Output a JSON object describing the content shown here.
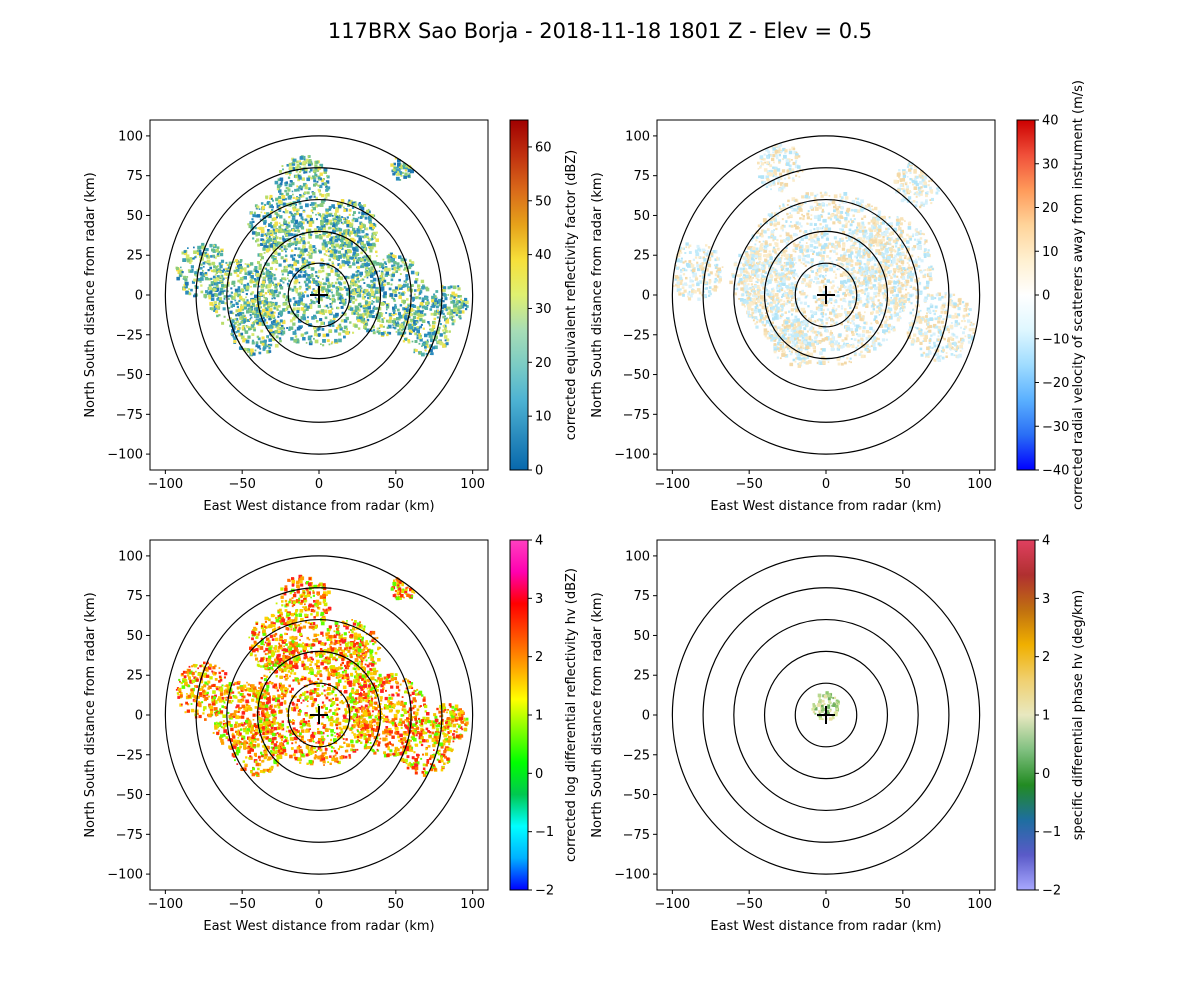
{
  "title": "117BRX Sao Borja - 2018-11-18 1801 Z -  Elev = 0.5",
  "chart_data": [
    {
      "type": "heatmap",
      "field": "reflectivity",
      "xlabel": "East West distance from radar (km)",
      "ylabel": "North South distance from radar (km)",
      "xlim": [
        -110,
        110
      ],
      "ylim": [
        -110,
        110
      ],
      "xticks": [
        -100,
        -50,
        0,
        50,
        100
      ],
      "yticks": [
        -100,
        -75,
        -50,
        -25,
        0,
        25,
        50,
        75,
        100
      ],
      "range_rings_km": [
        20,
        40,
        60,
        80,
        100
      ],
      "colorbar": {
        "label": "corrected equivalent reflectivity factor (dBZ)",
        "vmin": 0,
        "vmax": 65,
        "ticks": [
          0,
          10,
          20,
          30,
          40,
          50,
          60
        ],
        "colors": [
          "#0868ac",
          "#2b8cbe",
          "#4eb3d3",
          "#7bccc4",
          "#a8ddb5",
          "#dff071",
          "#f7e03a",
          "#e6a21a",
          "#d9691a",
          "#c0300f",
          "#a00000"
        ]
      },
      "echo_colors": [
        "#1f78b4",
        "#2b8cbe",
        "#3d9fb8",
        "#4fb0a8",
        "#66bb8d",
        "#8ccc7a",
        "#b8dd6a",
        "#d8e870",
        "#f2e04a"
      ],
      "echo_regions": [
        {
          "center": [
            0,
            10
          ],
          "radius": 42
        },
        {
          "center": [
            -10,
            70
          ],
          "radius": 18
        },
        {
          "center": [
            -28,
            45
          ],
          "radius": 18
        },
        {
          "center": [
            -75,
            15
          ],
          "radius": 18
        },
        {
          "center": [
            -50,
            0
          ],
          "radius": 22
        },
        {
          "center": [
            45,
            0
          ],
          "radius": 26
        },
        {
          "center": [
            70,
            -20
          ],
          "radius": 18
        },
        {
          "center": [
            85,
            -5
          ],
          "radius": 12
        },
        {
          "center": [
            -40,
            -20
          ],
          "radius": 18
        },
        {
          "center": [
            20,
            40
          ],
          "radius": 20
        },
        {
          "center": [
            55,
            80
          ],
          "radius": 8
        }
      ]
    },
    {
      "type": "heatmap",
      "field": "velocity",
      "xlabel": "East West distance from radar (km)",
      "ylabel": "North South distance from radar (km)",
      "xlim": [
        -110,
        110
      ],
      "ylim": [
        -110,
        110
      ],
      "xticks": [
        -100,
        -50,
        0,
        50,
        100
      ],
      "yticks": [
        -100,
        -75,
        -50,
        -25,
        0,
        25,
        50,
        75,
        100
      ],
      "range_rings_km": [
        20,
        40,
        60,
        80,
        100
      ],
      "colorbar": {
        "label": "corrected radial velocity of scatterers away from instrument (m/s)",
        "vmin": -40,
        "vmax": 40,
        "ticks": [
          -40,
          -30,
          -20,
          -10,
          0,
          10,
          20,
          30,
          40
        ],
        "colors": [
          "#0000ff",
          "#2a6ef5",
          "#5ab0ff",
          "#9fdcff",
          "#dff7ff",
          "#ffffff",
          "#fff0d0",
          "#ffd49a",
          "#ff9a5a",
          "#f0503a",
          "#cc0000"
        ]
      },
      "echo_colors": [
        "#fbeccb",
        "#f8e3b8",
        "#f3d9a8",
        "#d8f1fb",
        "#c2ebfa",
        "#b2e4f7"
      ],
      "echo_regions": [
        {
          "center": [
            0,
            10
          ],
          "radius": 55
        },
        {
          "center": [
            -85,
            15
          ],
          "radius": 18
        },
        {
          "center": [
            -40,
            10
          ],
          "radius": 22
        },
        {
          "center": [
            40,
            20
          ],
          "radius": 30
        },
        {
          "center": [
            75,
            -20
          ],
          "radius": 22
        },
        {
          "center": [
            -30,
            80
          ],
          "radius": 15
        },
        {
          "center": [
            -20,
            -30
          ],
          "radius": 15
        },
        {
          "center": [
            60,
            70
          ],
          "radius": 15
        }
      ]
    },
    {
      "type": "heatmap",
      "field": "differential_reflectivity",
      "xlabel": "East West distance from radar (km)",
      "ylabel": "North South distance from radar (km)",
      "xlim": [
        -110,
        110
      ],
      "ylim": [
        -110,
        110
      ],
      "xticks": [
        -100,
        -50,
        0,
        50,
        100
      ],
      "yticks": [
        -100,
        -75,
        -50,
        -25,
        0,
        25,
        50,
        75,
        100
      ],
      "range_rings_km": [
        20,
        40,
        60,
        80,
        100
      ],
      "colorbar": {
        "label": "corrected log differential reflectivity hv (dBZ)",
        "vmin": -2,
        "vmax": 4,
        "ticks": [
          -2,
          -1,
          0,
          1,
          2,
          3,
          4
        ],
        "colors": [
          "#0000ff",
          "#00b0ff",
          "#00ffff",
          "#00c850",
          "#00ff00",
          "#80ff00",
          "#ffff00",
          "#ffa500",
          "#ff5000",
          "#ff0000",
          "#ff00b0",
          "#ff40c0"
        ]
      },
      "echo_colors": [
        "#ff3000",
        "#ff6a00",
        "#ffa000",
        "#ffd000",
        "#c8f000",
        "#60ff00",
        "#ff2020",
        "#f5c000"
      ],
      "echo_regions": [
        {
          "center": [
            0,
            10
          ],
          "radius": 42
        },
        {
          "center": [
            -10,
            70
          ],
          "radius": 18
        },
        {
          "center": [
            -28,
            45
          ],
          "radius": 18
        },
        {
          "center": [
            -75,
            15
          ],
          "radius": 18
        },
        {
          "center": [
            -50,
            0
          ],
          "radius": 22
        },
        {
          "center": [
            45,
            0
          ],
          "radius": 26
        },
        {
          "center": [
            70,
            -20
          ],
          "radius": 18
        },
        {
          "center": [
            85,
            -5
          ],
          "radius": 12
        },
        {
          "center": [
            -40,
            -20
          ],
          "radius": 18
        },
        {
          "center": [
            20,
            40
          ],
          "radius": 20
        },
        {
          "center": [
            55,
            80
          ],
          "radius": 8
        }
      ]
    },
    {
      "type": "heatmap",
      "field": "specific_differential_phase",
      "xlabel": "East West distance from radar (km)",
      "ylabel": "North South distance from radar (km)",
      "xlim": [
        -110,
        110
      ],
      "ylim": [
        -110,
        110
      ],
      "xticks": [
        -100,
        -50,
        0,
        50,
        100
      ],
      "yticks": [
        -100,
        -75,
        -50,
        -25,
        0,
        25,
        50,
        75,
        100
      ],
      "range_rings_km": [
        20,
        40,
        60,
        80,
        100
      ],
      "colorbar": {
        "label": "specific differential phase hv (deg/km)",
        "vmin": -2,
        "vmax": 4,
        "ticks": [
          -2,
          -1,
          0,
          1,
          2,
          3,
          4
        ],
        "colors": [
          "#a8a8ff",
          "#5a5ac8",
          "#1e6ea0",
          "#228b22",
          "#80c080",
          "#e8e8c0",
          "#f0d070",
          "#f0b000",
          "#c07010",
          "#b03030",
          "#e04060"
        ]
      },
      "echo_colors": [
        "#d8e8a0",
        "#b8d890",
        "#90c870",
        "#70b060",
        "#e8e0a8"
      ],
      "echo_regions": [
        {
          "center": [
            0,
            5
          ],
          "radius": 9
        }
      ]
    }
  ]
}
